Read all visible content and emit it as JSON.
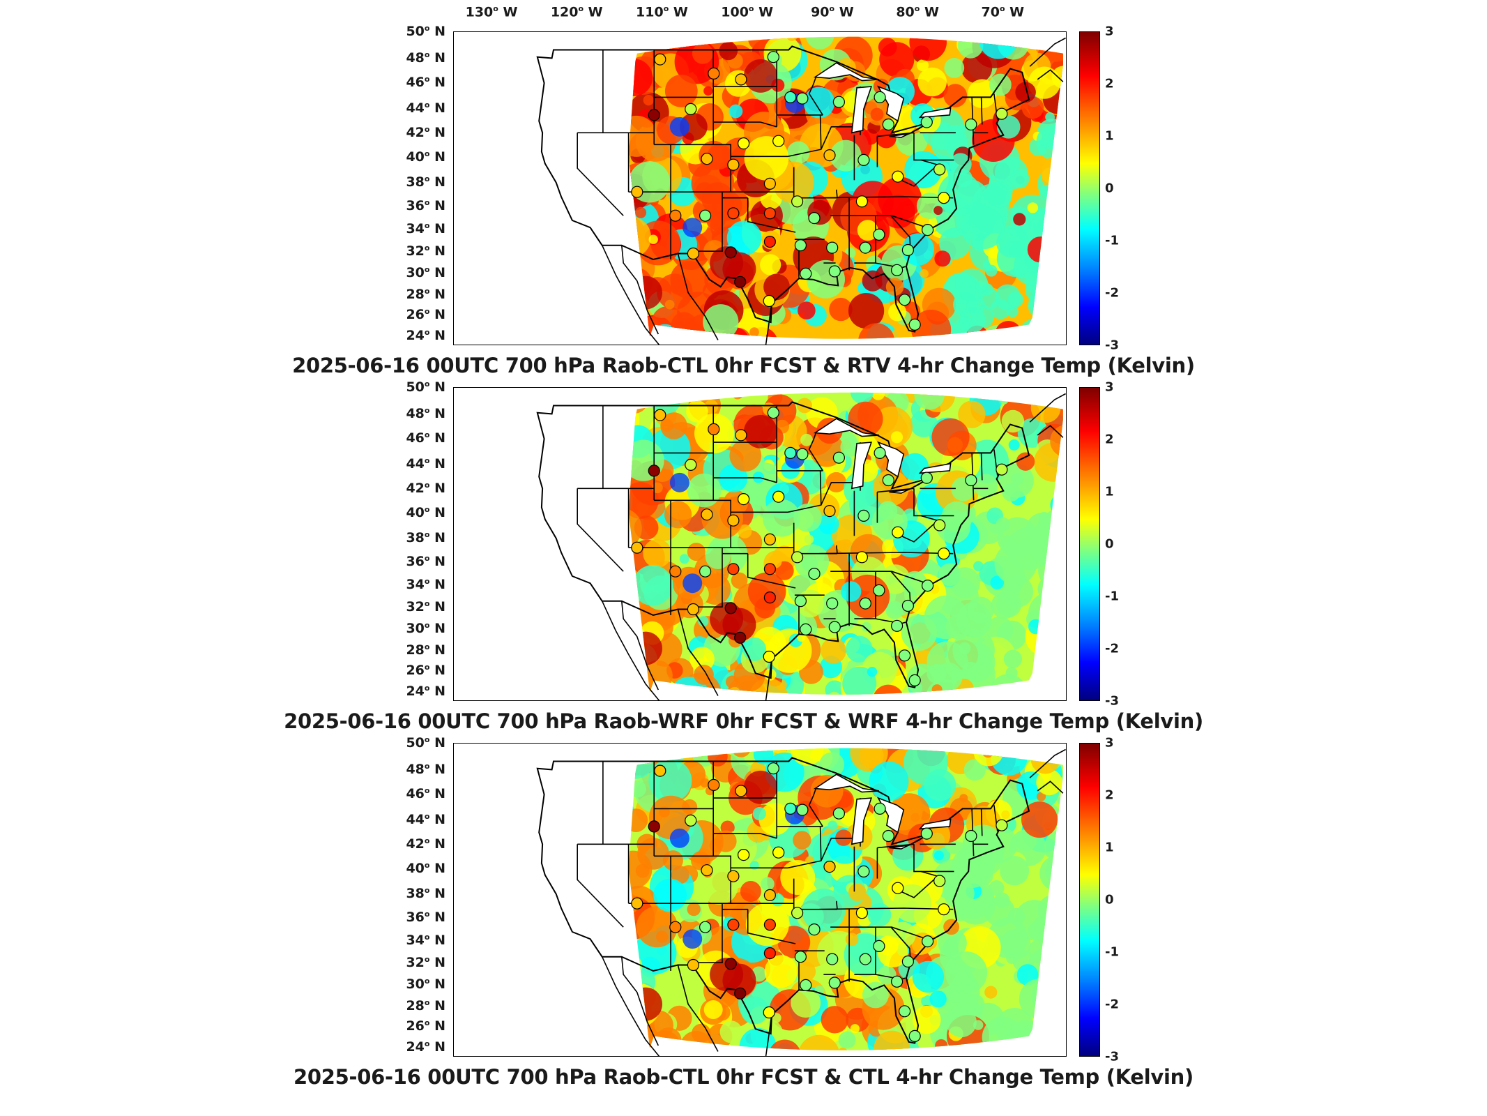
{
  "lon_axis": {
    "labels": [
      "130",
      "120",
      "110",
      "100",
      "90",
      "80",
      "70"
    ],
    "hemisphere": "W",
    "degree_mark": "o"
  },
  "lat_axis": {
    "labels": [
      "50",
      "48",
      "46",
      "44",
      "42",
      "40",
      "38",
      "36",
      "34",
      "32",
      "30",
      "28",
      "26",
      "24"
    ],
    "hemisphere": "N"
  },
  "colorbar": {
    "ticks": [
      "3",
      "2",
      "1",
      "0",
      "-1",
      "-2",
      "-3"
    ],
    "colormap": "jet",
    "colors": [
      "#7f0000",
      "#ff0000",
      "#ff8000",
      "#ffff00",
      "#80ff80",
      "#00ffff",
      "#0080ff",
      "#0000ff",
      "#00007f"
    ]
  },
  "panels": [
    {
      "title": "2025-06-16 00UTC 700 hPa Raob-CTL 0hr FCST & RTV 4-hr Change Temp (Kelvin)"
    },
    {
      "title": "2025-06-16 00UTC 700 hPa Raob-WRF 0hr FCST & WRF 4-hr Change Temp (Kelvin)"
    },
    {
      "title": "2025-06-16 00UTC 700 hPa Raob-CTL 0hr FCST & CTL 4-hr Change Temp (Kelvin)"
    }
  ],
  "raob_stations": [
    {
      "lon": -110.3,
      "lat": 48.2
    },
    {
      "lon": -104.0,
      "lat": 47.0
    },
    {
      "lon": -100.8,
      "lat": 46.5
    },
    {
      "lon": -97.0,
      "lat": 48.4
    },
    {
      "lon": -95.0,
      "lat": 45.0
    },
    {
      "lon": -93.6,
      "lat": 44.9
    },
    {
      "lon": -89.3,
      "lat": 44.6
    },
    {
      "lon": -84.5,
      "lat": 45.0
    },
    {
      "lon": -83.5,
      "lat": 42.7
    },
    {
      "lon": -79.0,
      "lat": 42.9
    },
    {
      "lon": -73.8,
      "lat": 42.7
    },
    {
      "lon": -70.2,
      "lat": 43.6
    },
    {
      "lon": -111.0,
      "lat": 43.5
    },
    {
      "lon": -106.7,
      "lat": 44.0
    },
    {
      "lon": -104.8,
      "lat": 39.8
    },
    {
      "lon": -100.5,
      "lat": 41.1
    },
    {
      "lon": -96.4,
      "lat": 41.3
    },
    {
      "lon": -97.4,
      "lat": 37.7
    },
    {
      "lon": -101.7,
      "lat": 39.3
    },
    {
      "lon": -90.4,
      "lat": 40.1
    },
    {
      "lon": -86.4,
      "lat": 39.7
    },
    {
      "lon": -82.4,
      "lat": 38.3
    },
    {
      "lon": -77.5,
      "lat": 38.9
    },
    {
      "lon": -77.0,
      "lat": 36.5
    },
    {
      "lon": -113.0,
      "lat": 37.0
    },
    {
      "lon": -108.5,
      "lat": 35.0
    },
    {
      "lon": -105.0,
      "lat": 35.0
    },
    {
      "lon": -101.7,
      "lat": 35.2
    },
    {
      "lon": -97.4,
      "lat": 35.2
    },
    {
      "lon": -94.2,
      "lat": 36.2
    },
    {
      "lon": -92.2,
      "lat": 34.8
    },
    {
      "lon": -86.6,
      "lat": 36.2
    },
    {
      "lon": -84.6,
      "lat": 33.4
    },
    {
      "lon": -81.2,
      "lat": 32.1
    },
    {
      "lon": -78.9,
      "lat": 33.8
    },
    {
      "lon": -106.4,
      "lat": 31.8
    },
    {
      "lon": -102.0,
      "lat": 31.9
    },
    {
      "lon": -97.4,
      "lat": 32.8
    },
    {
      "lon": -93.8,
      "lat": 32.5
    },
    {
      "lon": -90.1,
      "lat": 32.3
    },
    {
      "lon": -86.2,
      "lat": 32.3
    },
    {
      "lon": -82.5,
      "lat": 30.4
    },
    {
      "lon": -100.9,
      "lat": 29.4
    },
    {
      "lon": -97.5,
      "lat": 27.8
    },
    {
      "lon": -93.2,
      "lat": 30.1
    },
    {
      "lon": -89.8,
      "lat": 30.3
    },
    {
      "lon": -81.6,
      "lat": 27.9
    },
    {
      "lon": -80.4,
      "lat": 25.8
    }
  ]
}
